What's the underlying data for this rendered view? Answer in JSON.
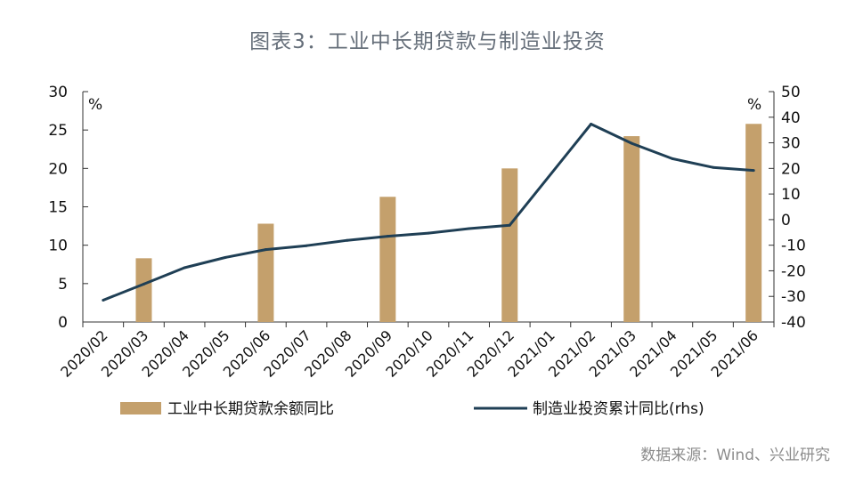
{
  "title": "图表3：工业中长期贷款与制造业投资",
  "source": "数据来源：Wind、兴业研究",
  "chart_data": {
    "type": "bar+line",
    "categories": [
      "2020/02",
      "2020/03",
      "2020/04",
      "2020/05",
      "2020/06",
      "2020/07",
      "2020/08",
      "2020/09",
      "2020/10",
      "2020/11",
      "2020/12",
      "2021/01",
      "2021/02",
      "2021/03",
      "2021/04",
      "2021/05",
      "2021/06"
    ],
    "series": [
      {
        "name": "工业中长期贷款余额同比",
        "type": "bar",
        "axis": "left",
        "color": "#c4a06c",
        "values": [
          null,
          8.3,
          null,
          null,
          12.8,
          null,
          null,
          16.3,
          null,
          null,
          20.0,
          null,
          null,
          24.2,
          null,
          null,
          25.8
        ]
      },
      {
        "name": "制造业投资累计同比(rhs)",
        "type": "line",
        "axis": "right",
        "color": "#1f3f55",
        "values": [
          -31.5,
          -25.2,
          -18.8,
          -14.8,
          -11.7,
          -10.2,
          -8.1,
          -6.5,
          -5.3,
          -3.5,
          -2.2,
          null,
          37.3,
          29.8,
          23.8,
          20.4,
          19.2
        ]
      }
    ],
    "y_left": {
      "ylim": [
        0,
        30
      ],
      "ticks": [
        0,
        5,
        10,
        15,
        20,
        25,
        30
      ],
      "unit": "%"
    },
    "y_right": {
      "ylim": [
        -40,
        50
      ],
      "ticks": [
        -40,
        -30,
        -20,
        -10,
        0,
        10,
        20,
        30,
        40,
        50
      ],
      "unit": "%"
    },
    "legend_position": "bottom",
    "grid": false
  }
}
